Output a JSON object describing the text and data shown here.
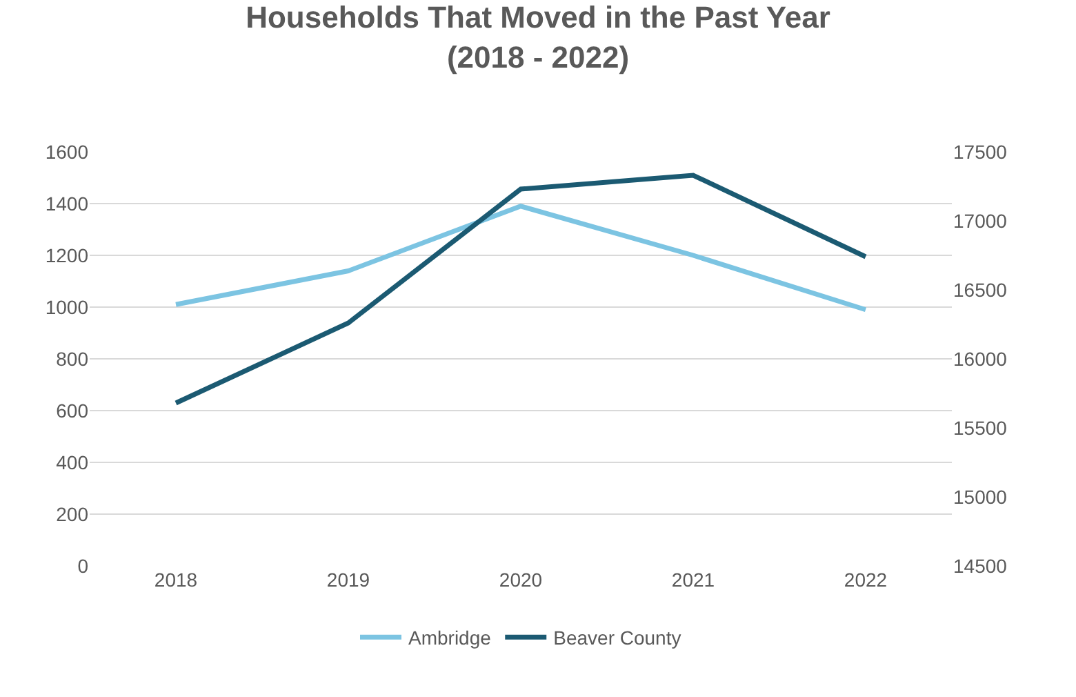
{
  "chart_data": {
    "type": "line",
    "title": "Households That Moved in the Past Year\n(2018 - 2022)",
    "categories": [
      "2018",
      "2019",
      "2020",
      "2021",
      "2022"
    ],
    "series": [
      {
        "name": "Ambridge",
        "color": "#7cc4e2",
        "values": [
          1010,
          1140,
          1390,
          1200,
          990
        ]
      },
      {
        "name": "Beaver County",
        "color": "#1b5a72",
        "values": [
          15680,
          16260,
          17230,
          17330,
          16740
        ],
        "axis": "y2"
      }
    ],
    "ylim": [
      0,
      1600
    ],
    "yticks": [
      0,
      200,
      400,
      600,
      800,
      1000,
      1200,
      1400,
      1600
    ],
    "y2lim": [
      14500,
      17500
    ],
    "y2ticks": [
      14500,
      15000,
      15500,
      16000,
      16500,
      17000,
      17500
    ],
    "grid": "y",
    "legend": "bottom",
    "marker": "none",
    "line_style": "solid"
  }
}
